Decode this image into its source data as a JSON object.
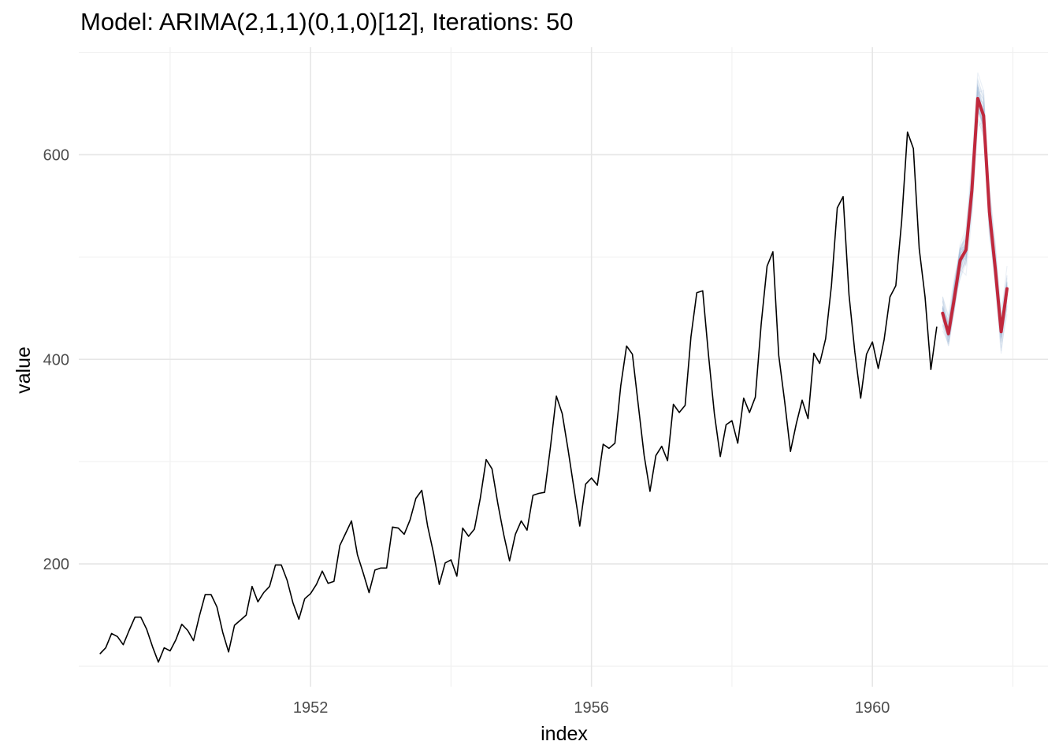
{
  "chart_data": {
    "type": "line",
    "title": "Model: ARIMA(2,1,1)(0,1,0)[12], Iterations: 50",
    "xlabel": "index",
    "ylabel": "value",
    "x_ticks": [
      1952,
      1956,
      1960
    ],
    "y_ticks": [
      200,
      400,
      600
    ],
    "xlim": [
      1948.7,
      1962.5
    ],
    "ylim": [
      80,
      705
    ],
    "grid": true,
    "colors": {
      "observed": "#000000",
      "forecast_mean": "#c0283c",
      "simulations": "#a7c0dc"
    },
    "observed": {
      "start": 1949.0,
      "frequency": 12,
      "values": [
        112,
        118,
        132,
        129,
        121,
        135,
        148,
        148,
        136,
        119,
        104,
        118,
        115,
        126,
        141,
        135,
        125,
        149,
        170,
        170,
        158,
        133,
        114,
        140,
        145,
        150,
        178,
        163,
        172,
        178,
        199,
        199,
        184,
        162,
        146,
        166,
        171,
        180,
        193,
        181,
        183,
        218,
        230,
        242,
        209,
        191,
        172,
        194,
        196,
        196,
        236,
        235,
        229,
        243,
        264,
        272,
        237,
        211,
        180,
        201,
        204,
        188,
        235,
        227,
        234,
        264,
        302,
        293,
        259,
        229,
        203,
        229,
        242,
        233,
        267,
        269,
        270,
        315,
        364,
        347,
        312,
        274,
        237,
        278,
        284,
        277,
        317,
        313,
        318,
        374,
        413,
        405,
        355,
        306,
        271,
        306,
        315,
        301,
        356,
        348,
        355,
        422,
        465,
        467,
        404,
        347,
        305,
        336,
        340,
        318,
        362,
        348,
        363,
        435,
        491,
        505,
        404,
        359,
        310,
        337,
        360,
        342,
        406,
        396,
        420,
        472,
        548,
        559,
        463,
        407,
        362,
        405,
        417,
        391,
        419,
        461,
        472,
        535,
        622,
        606,
        508,
        461,
        390,
        432
      ]
    },
    "forecast": {
      "start": 1961.0,
      "frequency": 12,
      "mean": [
        445,
        425,
        460,
        497,
        507,
        565,
        655,
        638,
        544,
        488,
        427,
        469
      ],
      "iterations": 50
    }
  }
}
